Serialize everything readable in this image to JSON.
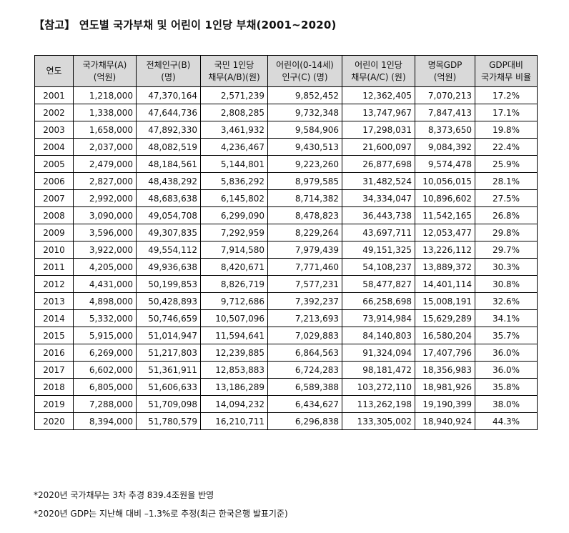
{
  "title": "【참고】 연도별 국가부채 및  어린이 1인당 부채(2001~2020)",
  "table": {
    "headers": [
      {
        "line1": "연도",
        "line2": ""
      },
      {
        "line1": "국가채무(A)",
        "line2": "(억원)"
      },
      {
        "line1": "전체인구(B)",
        "line2": "(명)"
      },
      {
        "line1": "국민 1인당",
        "line2": "채무(A/B)(원)"
      },
      {
        "line1": "어린이(0-14세)",
        "line2": "인구(C) (명)"
      },
      {
        "line1": "어린이 1인당",
        "line2": "채무(A/C) (원)"
      },
      {
        "line1": "명목GDP",
        "line2": "(억원)"
      },
      {
        "line1": "GDP대비",
        "line2": "국가채무 비율"
      }
    ],
    "rows": [
      [
        "2001",
        "1,218,000",
        "47,370,164",
        "2,571,239",
        "9,852,452",
        "12,362,405",
        "7,070,213",
        "17.2%"
      ],
      [
        "2002",
        "1,338,000",
        "47,644,736",
        "2,808,285",
        "9,732,348",
        "13,747,967",
        "7,847,413",
        "17.1%"
      ],
      [
        "2003",
        "1,658,000",
        "47,892,330",
        "3,461,932",
        "9,584,906",
        "17,298,031",
        "8,373,650",
        "19.8%"
      ],
      [
        "2004",
        "2,037,000",
        "48,082,519",
        "4,236,467",
        "9,430,513",
        "21,600,097",
        "9,084,392",
        "22.4%"
      ],
      [
        "2005",
        "2,479,000",
        "48,184,561",
        "5,144,801",
        "9,223,260",
        "26,877,698",
        "9,574,478",
        "25.9%"
      ],
      [
        "2006",
        "2,827,000",
        "48,438,292",
        "5,836,292",
        "8,979,585",
        "31,482,524",
        "10,056,015",
        "28.1%"
      ],
      [
        "2007",
        "2,992,000",
        "48,683,638",
        "6,145,802",
        "8,714,382",
        "34,334,047",
        "10,896,602",
        "27.5%"
      ],
      [
        "2008",
        "3,090,000",
        "49,054,708",
        "6,299,090",
        "8,478,823",
        "36,443,738",
        "11,542,165",
        "26.8%"
      ],
      [
        "2009",
        "3,596,000",
        "49,307,835",
        "7,292,959",
        "8,229,264",
        "43,697,711",
        "12,053,477",
        "29.8%"
      ],
      [
        "2010",
        "3,922,000",
        "49,554,112",
        "7,914,580",
        "7,979,439",
        "49,151,325",
        "13,226,112",
        "29.7%"
      ],
      [
        "2011",
        "4,205,000",
        "49,936,638",
        "8,420,671",
        "7,771,460",
        "54,108,237",
        "13,889,372",
        "30.3%"
      ],
      [
        "2012",
        "4,431,000",
        "50,199,853",
        "8,826,719",
        "7,577,231",
        "58,477,827",
        "14,401,114",
        "30.8%"
      ],
      [
        "2013",
        "4,898,000",
        "50,428,893",
        "9,712,686",
        "7,392,237",
        "66,258,698",
        "15,008,191",
        "32.6%"
      ],
      [
        "2014",
        "5,332,000",
        "50,746,659",
        "10,507,096",
        "7,213,693",
        "73,914,984",
        "15,629,289",
        "34.1%"
      ],
      [
        "2015",
        "5,915,000",
        "51,014,947",
        "11,594,641",
        "7,029,883",
        "84,140,803",
        "16,580,204",
        "35.7%"
      ],
      [
        "2016",
        "6,269,000",
        "51,217,803",
        "12,239,885",
        "6,864,563",
        "91,324,094",
        "17,407,796",
        "36.0%"
      ],
      [
        "2017",
        "6,602,000",
        "51,361,911",
        "12,853,883",
        "6,724,283",
        "98,181,472",
        "18,356,983",
        "36.0%"
      ],
      [
        "2018",
        "6,805,000",
        "51,606,633",
        "13,186,289",
        "6,589,388",
        "103,272,110",
        "18,981,926",
        "35.8%"
      ],
      [
        "2019",
        "7,288,000",
        "51,709,098",
        "14,094,232",
        "6,434,627",
        "113,262,198",
        "19,190,399",
        "38.0%"
      ],
      [
        "2020",
        "8,394,000",
        "51,780,579",
        "16,210,711",
        "6,296,838",
        "133,305,002",
        "18,940,924",
        "44.3%"
      ]
    ]
  },
  "footnotes": {
    "note1": "*2020년 국가채무는 3차 추경 839.4조원을 반영",
    "note2": "*2020년 GDP는 지난해 대비 –1.3%로 추정(최근 한국은행 발표기준)"
  }
}
